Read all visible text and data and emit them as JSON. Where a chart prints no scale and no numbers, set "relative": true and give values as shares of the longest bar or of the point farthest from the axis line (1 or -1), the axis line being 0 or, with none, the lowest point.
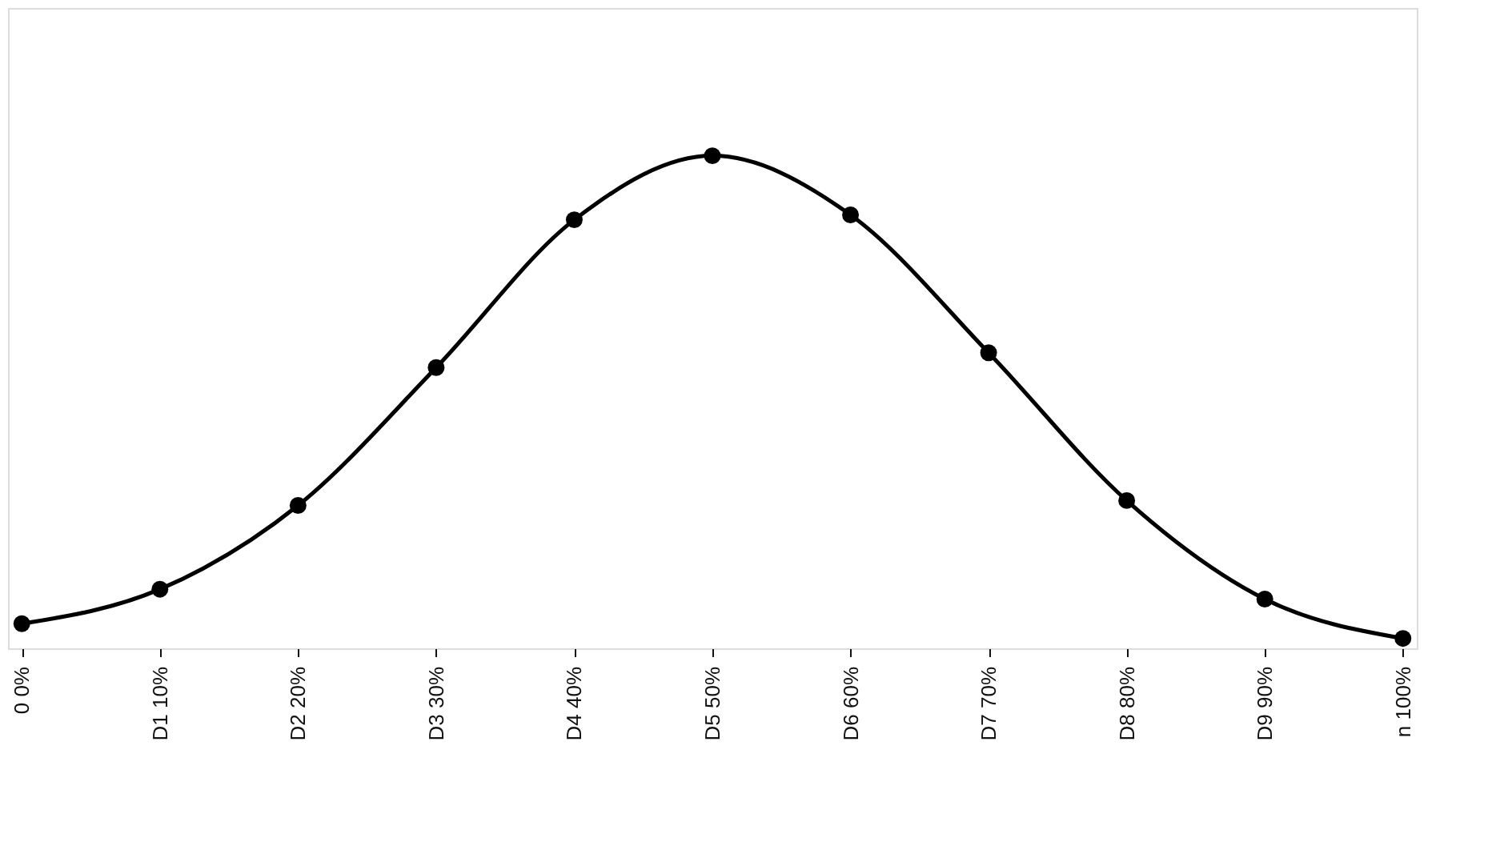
{
  "chart_data": {
    "type": "line",
    "relative": true,
    "categories": [
      "0 0%",
      "D1 10%",
      "D2 20%",
      "D3 30%",
      "D4 40%",
      "D5 50%",
      "D6 60%",
      "D7 70%",
      "D8 80%",
      "D9 90%",
      "n 100%"
    ],
    "series": [
      {
        "color": "#000000",
        "values": [
          0.05,
          0.12,
          0.29,
          0.57,
          0.87,
          1,
          0.88,
          0.6,
          0.3,
          0.1,
          0.02
        ]
      }
    ],
    "marker": "circle",
    "line_style": "solid",
    "grid": false
  }
}
